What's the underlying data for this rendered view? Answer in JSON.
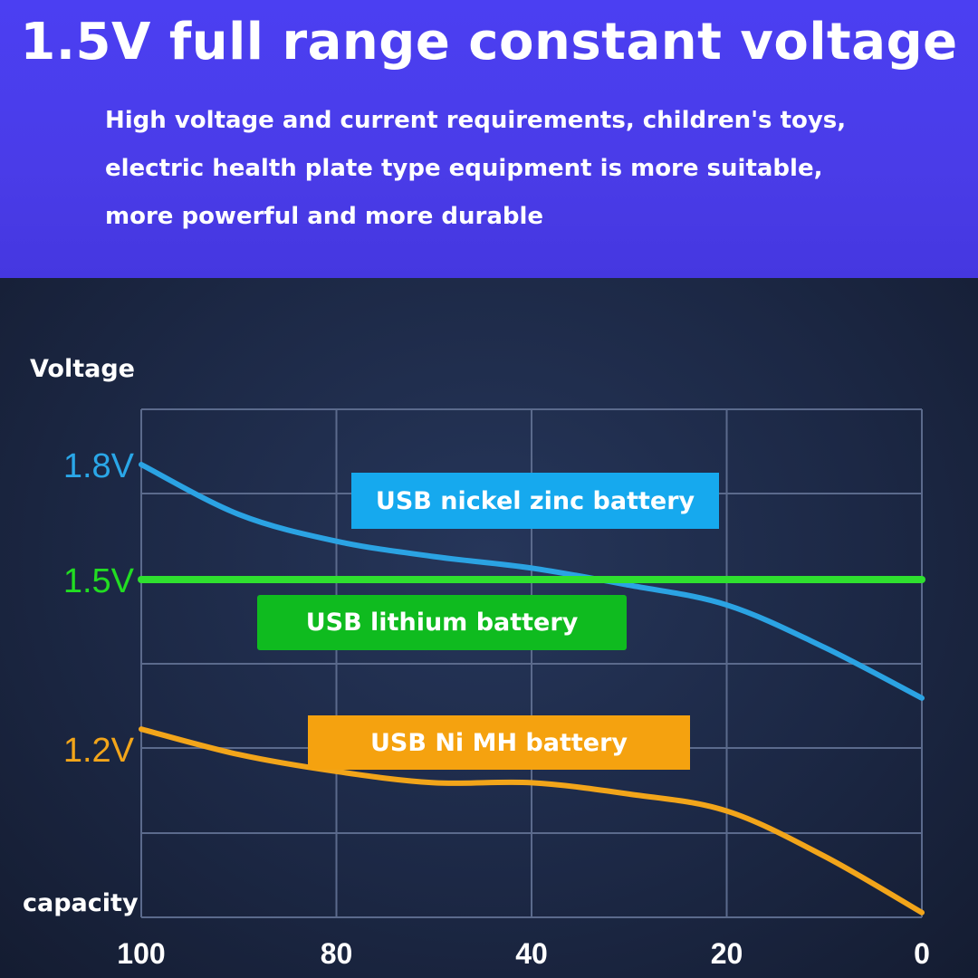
{
  "header": {
    "title": "1.5V full range constant voltage",
    "lines": [
      "High voltage and current requirements, children's toys,",
      "electric health plate type equipment is more suitable,",
      "more powerful and more durable"
    ]
  },
  "chart_data": {
    "type": "line",
    "ylabel": "Voltage",
    "xlabel": "capacity",
    "x_ticks": [
      100,
      80,
      40,
      20,
      0
    ],
    "y_ticks": [
      {
        "value": 1.8,
        "label": "1.8V",
        "color": "#2aa7e8"
      },
      {
        "value": 1.5,
        "label": "1.5V",
        "color": "#22dd22"
      },
      {
        "value": 1.2,
        "label": "1.2V",
        "color": "#f2a51a"
      }
    ],
    "grid": true,
    "series": [
      {
        "name": "USB nickel zinc battery",
        "color": "#2ba3e3",
        "label_bg": "#16a9ee",
        "x": [
          100,
          90,
          80,
          60,
          40,
          30,
          20,
          10,
          0
        ],
        "y": [
          1.8,
          1.67,
          1.6,
          1.56,
          1.53,
          1.49,
          1.455,
          1.38,
          1.29
        ]
      },
      {
        "name": "USB lithium battery",
        "color": "#2fe02f",
        "label_bg": "#0fbb1f",
        "x": [
          100,
          0
        ],
        "y": [
          1.5,
          1.5
        ]
      },
      {
        "name": "USB Ni MH battery",
        "color": "#f2a51a",
        "label_bg": "#f5a20f",
        "x": [
          100,
          90,
          80,
          60,
          40,
          30,
          20,
          10,
          0
        ],
        "y": [
          1.235,
          1.19,
          1.16,
          1.14,
          1.14,
          1.12,
          1.09,
          1.01,
          0.91
        ]
      }
    ]
  }
}
